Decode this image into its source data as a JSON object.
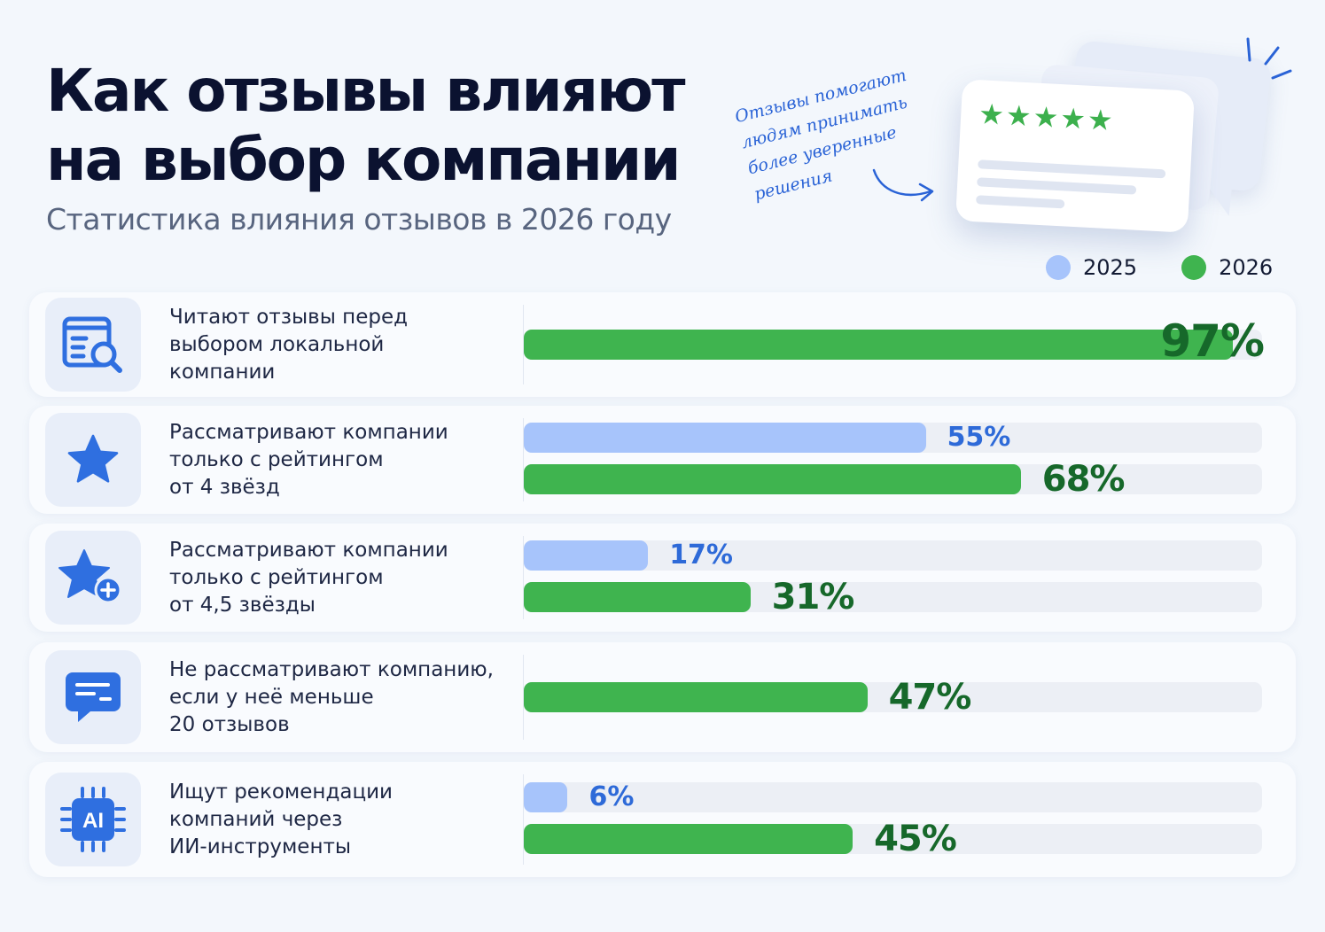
{
  "header": {
    "title_lines": [
      "Как отзывы влияют",
      "на выбор компании"
    ],
    "subtitle": "Статистика влияния отзывов в 2026 году"
  },
  "annotation": {
    "lines": [
      "Отзывы помогают",
      "людям принимать",
      "более уверенные",
      "решения"
    ]
  },
  "illustration": {
    "stars": "★★★★★",
    "icon": "review-card-illustration",
    "star_color": "#3cb04d"
  },
  "legend": [
    {
      "label": "2025",
      "color": "#a7c4fb"
    },
    {
      "label": "2026",
      "color": "#3fb44f"
    }
  ],
  "chart_data": {
    "type": "bar",
    "orientation": "horizontal",
    "title": "Как отзывы влияют на выбор компании",
    "subtitle": "Статистика влияния отзывов в 2026 году",
    "xlim": [
      0,
      100
    ],
    "unit": "%",
    "legend_position": "top-right",
    "grid": false,
    "categories": [
      {
        "icon": "document-search-icon",
        "lines": [
          "Читают отзывы перед",
          "выбором локальной",
          "компании"
        ]
      },
      {
        "icon": "star-icon",
        "lines": [
          "Рассматривают компании",
          "только с рейтингом",
          "от 4 звёзд"
        ]
      },
      {
        "icon": "star-plus-icon",
        "lines": [
          "Рассматривают компании",
          "только с рейтингом",
          "от 4,5 звёзды"
        ]
      },
      {
        "icon": "chat-bubble-icon",
        "lines": [
          "Не рассматривают компанию,",
          "если у неё меньше",
          "20 отзывов"
        ]
      },
      {
        "icon": "ai-chip-icon",
        "lines": [
          "Ищут рекомендации",
          "компаний через",
          "ИИ-инструменты"
        ]
      }
    ],
    "series": [
      {
        "name": "2025",
        "color": "#a7c4fb",
        "values": [
          null,
          55,
          17,
          null,
          6
        ],
        "labels": [
          null,
          "55%",
          "17%",
          null,
          "6%"
        ]
      },
      {
        "name": "2026",
        "color": "#3fb44f",
        "values": [
          97,
          68,
          31,
          47,
          45
        ],
        "labels": [
          "97%",
          "68%",
          "31%",
          "47%",
          "45%"
        ]
      }
    ]
  }
}
